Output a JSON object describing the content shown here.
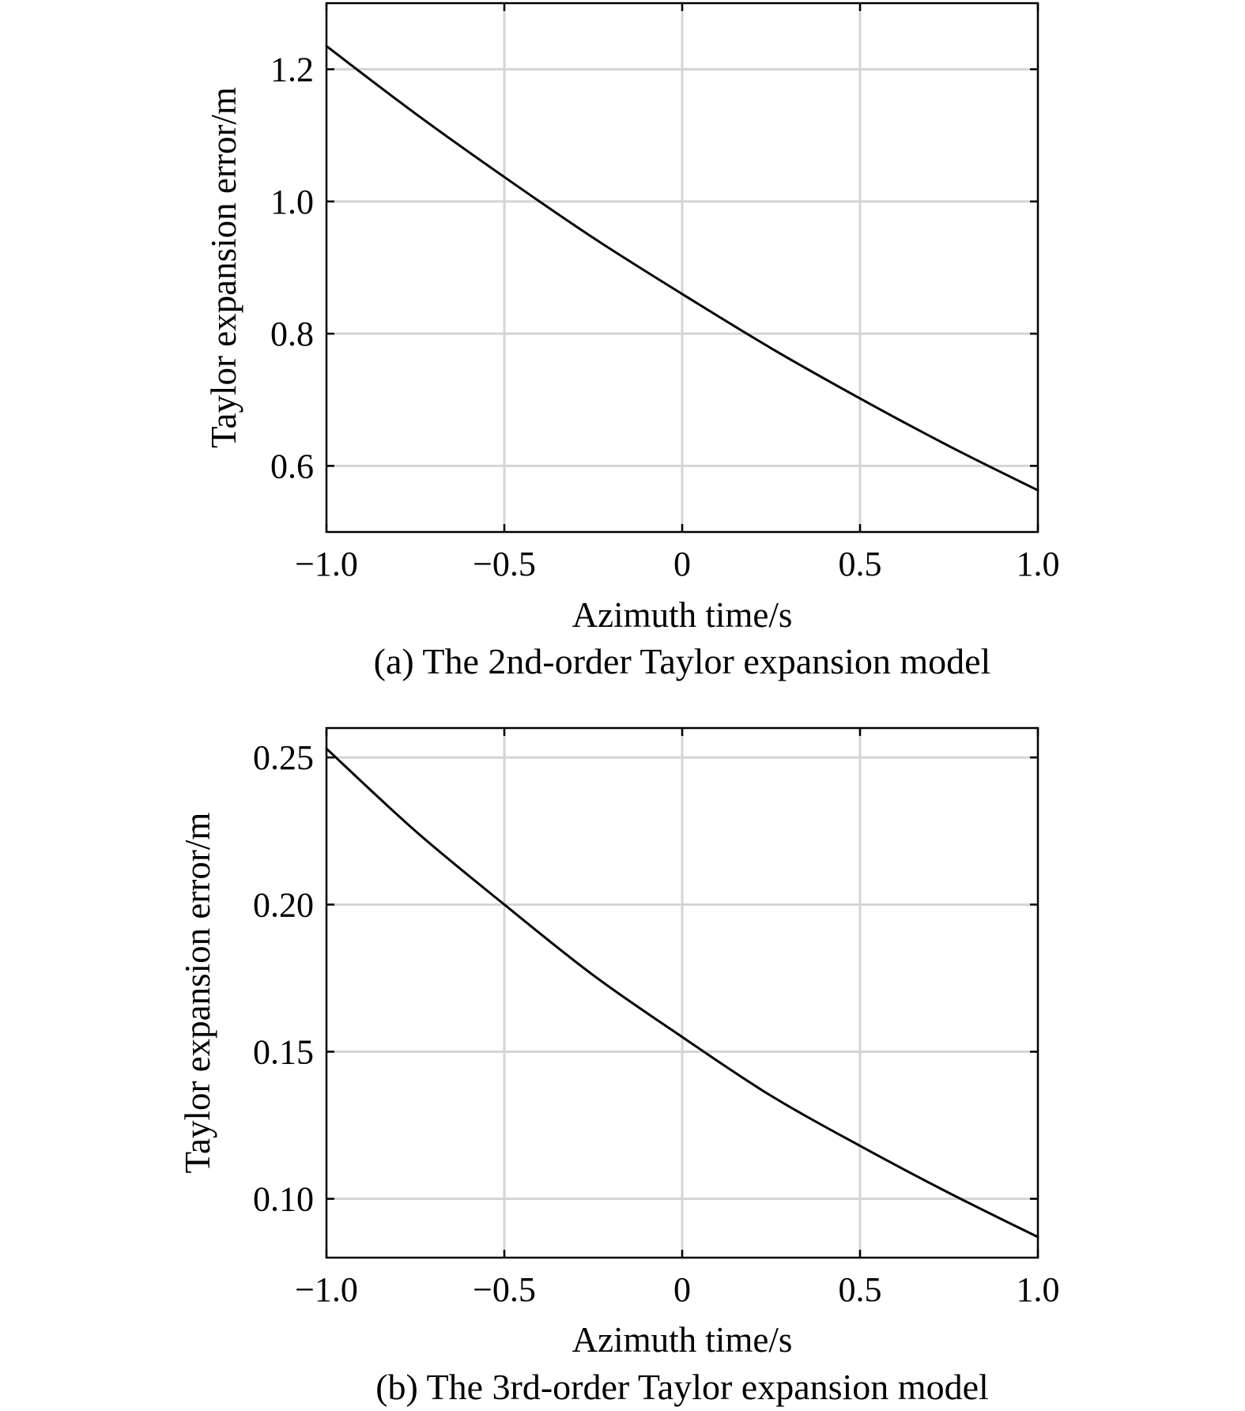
{
  "chart_data": [
    {
      "type": "line",
      "caption": "(a) The 2nd-order Taylor expansion model",
      "xlabel": "Azimuth time/s",
      "ylabel": "Taylor expansion error/m",
      "xlim": [
        -1.0,
        1.0
      ],
      "ylim": [
        0.5,
        1.3
      ],
      "x_ticks": [
        -1.0,
        -0.5,
        0,
        0.5,
        1.0
      ],
      "x_tick_labels": [
        "−1.0",
        "−0.5",
        "0",
        "0.5",
        "1.0"
      ],
      "y_ticks": [
        0.6,
        0.8,
        1.0,
        1.2
      ],
      "y_tick_labels": [
        "0.6",
        "0.8",
        "1.0",
        "1.2"
      ],
      "grid": true,
      "series": [
        {
          "x": [
            -1.0,
            -0.75,
            -0.5,
            -0.25,
            0,
            0.25,
            0.5,
            0.75,
            1.0
          ],
          "y": [
            1.235,
            1.133,
            1.037,
            0.945,
            0.86,
            0.778,
            0.702,
            0.63,
            0.563
          ]
        }
      ]
    },
    {
      "type": "line",
      "caption": "(b) The 3rd-order Taylor expansion model",
      "xlabel": "Azimuth time/s",
      "ylabel": "Taylor expansion error/m",
      "xlim": [
        -1.0,
        1.0
      ],
      "ylim": [
        0.08,
        0.26
      ],
      "x_ticks": [
        -1.0,
        -0.5,
        0,
        0.5,
        1.0
      ],
      "x_tick_labels": [
        "−1.0",
        "−0.5",
        "0",
        "0.5",
        "1.0"
      ],
      "y_ticks": [
        0.1,
        0.15,
        0.2,
        0.25
      ],
      "y_tick_labels": [
        "0.10",
        "0.15",
        "0.20",
        "0.25"
      ],
      "grid": true,
      "series": [
        {
          "x": [
            -1.0,
            -0.75,
            -0.5,
            -0.25,
            0,
            0.25,
            0.5,
            0.75,
            1.0
          ],
          "y": [
            0.253,
            0.225,
            0.2,
            0.176,
            0.155,
            0.135,
            0.118,
            0.102,
            0.087
          ]
        }
      ]
    }
  ]
}
